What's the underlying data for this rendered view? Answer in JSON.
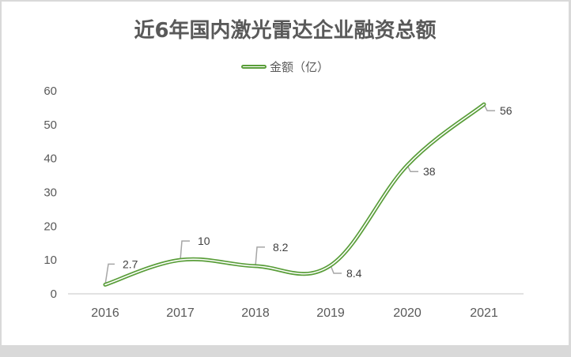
{
  "chart_data": {
    "type": "line",
    "title": "近6年国内激光雷达企业融资总额",
    "categories": [
      "2016",
      "2017",
      "2018",
      "2019",
      "2020",
      "2021"
    ],
    "series": [
      {
        "name": "金额（亿）",
        "values": [
          2.7,
          10,
          8.2,
          8.4,
          38,
          56
        ],
        "color": "#5a9e3a"
      }
    ],
    "xlabel": "",
    "ylabel": "",
    "ylim": [
      0,
      60
    ],
    "yticks": [
      "0",
      "10",
      "20",
      "30",
      "40",
      "50",
      "60"
    ],
    "data_labels": [
      "2.7",
      "10",
      "8.2",
      "8.4",
      "38",
      "56"
    ],
    "grid": false,
    "legend_position": "top",
    "smooth": true
  },
  "colors": {
    "line": "#5a9e3a",
    "leader": "#a6a6a6",
    "axis": "#d9d9d9",
    "text": "#595959"
  }
}
